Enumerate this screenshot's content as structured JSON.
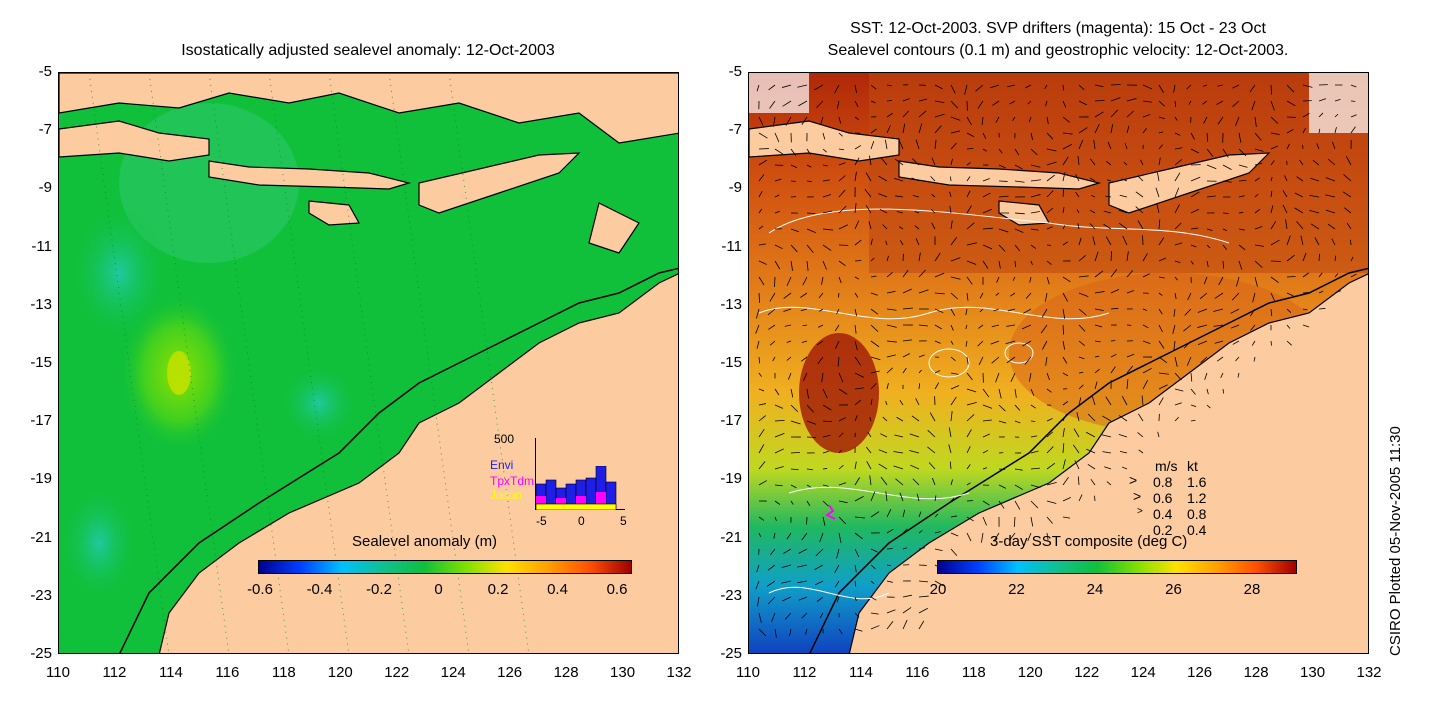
{
  "left": {
    "title": "Isostatically adjusted sealevel anomaly: 12-Oct-2003",
    "colorbar": {
      "label": "Sealevel anomaly (m)",
      "ticks": [
        "-0.6",
        "-0.4",
        "-0.2",
        "0",
        "0.2",
        "0.4",
        "0.6"
      ]
    },
    "inset": {
      "ymax_label": "500",
      "legend": [
        {
          "name": "Envi",
          "color": "#1e1ee6"
        },
        {
          "name": "TpxTdm",
          "color": "#ff00ff"
        },
        {
          "name": "Jason",
          "color": "#ffff00"
        }
      ],
      "xticks": [
        "-5",
        "0",
        "5"
      ]
    }
  },
  "right": {
    "title_line1": "SST: 12-Oct-2003. SVP drifters (magenta): 15 Oct - 23 Oct",
    "title_line2": "Sealevel contours (0.1 m) and geostrophic velocity: 12-Oct-2003.",
    "colorbar": {
      "label": "3-day SST composite (deg C)",
      "ticks": [
        "20",
        "22",
        "24",
        "26",
        "28"
      ]
    },
    "velocity_legend": {
      "header_ms": "m/s",
      "header_kt": "kt",
      "rows": [
        {
          "ms": "0.8",
          "kt": "1.6"
        },
        {
          "ms": "0.6",
          "kt": "1.2"
        },
        {
          "ms": "0.4",
          "kt": "0.8"
        },
        {
          "ms": "0.2",
          "kt": "0.4"
        }
      ]
    }
  },
  "axes": {
    "y_ticks": [
      "-5",
      "-7",
      "-9",
      "-11",
      "-13",
      "-15",
      "-17",
      "-19",
      "-21",
      "-23",
      "-25"
    ],
    "x_ticks": [
      "110",
      "112",
      "114",
      "116",
      "118",
      "120",
      "122",
      "124",
      "126",
      "128",
      "130",
      "132"
    ]
  },
  "credit": "CSIRO Plotted 05-Nov-2005 11:30",
  "colors": {
    "land": "#fccca0",
    "ocean_anomaly": "#10c03a",
    "sst_warm": "#c04a10",
    "sst_cool": "#f0c020",
    "drifter": "#ff00ff"
  }
}
